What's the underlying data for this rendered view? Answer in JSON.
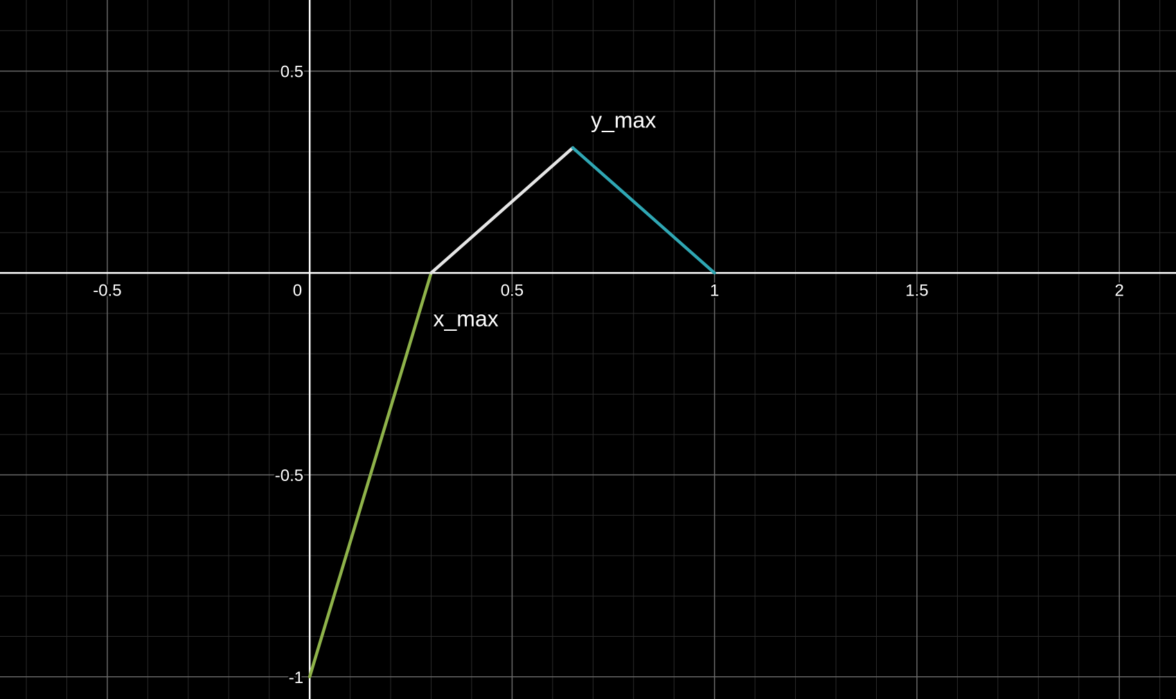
{
  "chart_data": {
    "type": "line",
    "title": "",
    "xlabel": "",
    "ylabel": "",
    "xlim": [
      -0.765,
      2.14
    ],
    "ylim": [
      -1.055,
      0.676
    ],
    "grid": true,
    "minor_grid": true,
    "x_ticks": [
      {
        "value": -0.5,
        "label": "-0.5"
      },
      {
        "value": 0.5,
        "label": "0.5"
      },
      {
        "value": 1,
        "label": "1"
      },
      {
        "value": 1.5,
        "label": "1.5"
      },
      {
        "value": 2,
        "label": "2"
      }
    ],
    "y_ticks": [
      {
        "value": 0.5,
        "label": "0.5"
      },
      {
        "value": -0.5,
        "label": "-0.5"
      },
      {
        "value": -1,
        "label": "-1"
      }
    ],
    "origin_label": "0",
    "series": [
      {
        "color": "#8fb34a",
        "points": [
          [
            0,
            -1
          ],
          [
            0.3,
            0
          ]
        ]
      },
      {
        "color": "#e6e6e6",
        "points": [
          [
            0.3,
            0
          ],
          [
            0.65,
            0.31
          ]
        ]
      },
      {
        "color": "#2fa7b4",
        "points": [
          [
            0.65,
            0.31
          ],
          [
            1,
            0
          ]
        ]
      }
    ],
    "annotations": [
      {
        "text": "x_max",
        "x": 0.3,
        "y": 0
      },
      {
        "text": "y_max",
        "x": 0.65,
        "y": 0.31
      }
    ],
    "colors": {
      "background": "#000000",
      "axis": "#ffffff",
      "major_grid": "#6a6a6a",
      "minor_grid": "#2c2c2c",
      "text": "#ffffff"
    }
  }
}
